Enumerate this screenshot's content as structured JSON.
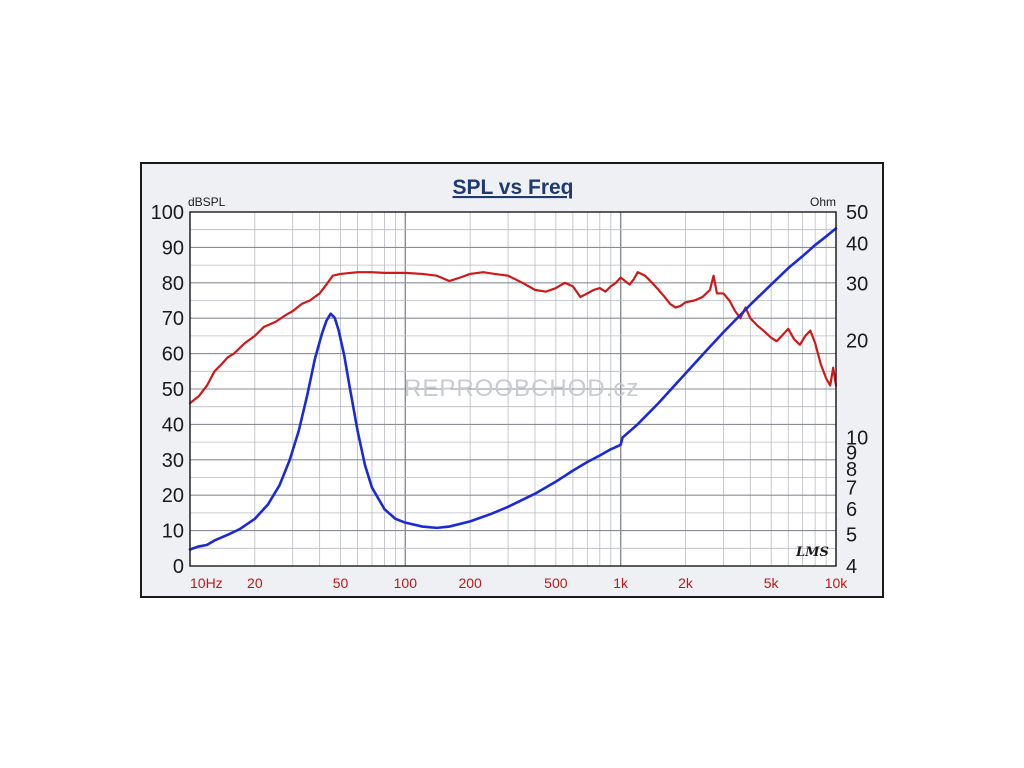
{
  "chart_data": {
    "type": "line",
    "title": "SPL vs Freq",
    "ylabel": "dBSPL",
    "y2label": "Ohm",
    "watermark": "REPROOBCHOD.cz",
    "logo": "LMS",
    "x_scale": "log",
    "xlim": [
      10,
      10000
    ],
    "ylim": [
      0,
      100
    ],
    "y2lim": [
      4,
      50
    ],
    "y2_scale": "log",
    "grid": true,
    "x_ticks": [
      {
        "value": 10,
        "label": "10Hz"
      },
      {
        "value": 20,
        "label": "20"
      },
      {
        "value": 50,
        "label": "50"
      },
      {
        "value": 100,
        "label": "100"
      },
      {
        "value": 200,
        "label": "200"
      },
      {
        "value": 500,
        "label": "500"
      },
      {
        "value": 1000,
        "label": "1k"
      },
      {
        "value": 2000,
        "label": "2k"
      },
      {
        "value": 5000,
        "label": "5k"
      },
      {
        "value": 10000,
        "label": "10k"
      }
    ],
    "y_ticks": [
      0,
      10,
      20,
      30,
      40,
      50,
      60,
      70,
      80,
      90,
      100
    ],
    "y2_ticks": [
      4,
      5,
      6,
      7,
      8,
      9,
      10,
      20,
      30,
      40,
      50
    ],
    "series": [
      {
        "axis": "left",
        "color": "#d01818",
        "points": [
          [
            10,
            46
          ],
          [
            11,
            48
          ],
          [
            12,
            51
          ],
          [
            13,
            55
          ],
          [
            14,
            57
          ],
          [
            15,
            59
          ],
          [
            16,
            60
          ],
          [
            18,
            63
          ],
          [
            20,
            65
          ],
          [
            22,
            67.5
          ],
          [
            25,
            69
          ],
          [
            28,
            71
          ],
          [
            30,
            72
          ],
          [
            33,
            74
          ],
          [
            36,
            75
          ],
          [
            40,
            77
          ],
          [
            43,
            79.5
          ],
          [
            46,
            82
          ],
          [
            50,
            82.5
          ],
          [
            60,
            83
          ],
          [
            70,
            83
          ],
          [
            80,
            82.8
          ],
          [
            100,
            82.8
          ],
          [
            120,
            82.5
          ],
          [
            140,
            82
          ],
          [
            160,
            80.5
          ],
          [
            180,
            81.5
          ],
          [
            200,
            82.5
          ],
          [
            230,
            83
          ],
          [
            260,
            82.5
          ],
          [
            300,
            82
          ],
          [
            350,
            80
          ],
          [
            400,
            78
          ],
          [
            450,
            77.5
          ],
          [
            500,
            78.5
          ],
          [
            550,
            80
          ],
          [
            600,
            79
          ],
          [
            650,
            76
          ],
          [
            700,
            77
          ],
          [
            750,
            78
          ],
          [
            800,
            78.5
          ],
          [
            850,
            77.5
          ],
          [
            900,
            79
          ],
          [
            950,
            80
          ],
          [
            1000,
            81.5
          ],
          [
            1100,
            79.5
          ],
          [
            1150,
            81
          ],
          [
            1200,
            83
          ],
          [
            1300,
            82
          ],
          [
            1400,
            80
          ],
          [
            1500,
            78
          ],
          [
            1600,
            76
          ],
          [
            1700,
            74
          ],
          [
            1800,
            73
          ],
          [
            1900,
            73.5
          ],
          [
            2000,
            74.5
          ],
          [
            2200,
            75
          ],
          [
            2400,
            76
          ],
          [
            2600,
            78
          ],
          [
            2700,
            82
          ],
          [
            2800,
            77
          ],
          [
            3000,
            77
          ],
          [
            3200,
            75
          ],
          [
            3400,
            72
          ],
          [
            3600,
            70
          ],
          [
            3800,
            73
          ],
          [
            4000,
            70
          ],
          [
            4300,
            68
          ],
          [
            4600,
            66.5
          ],
          [
            5000,
            64.5
          ],
          [
            5300,
            63.5
          ],
          [
            5600,
            65
          ],
          [
            6000,
            67
          ],
          [
            6400,
            64
          ],
          [
            6800,
            62.5
          ],
          [
            7200,
            65
          ],
          [
            7600,
            66.5
          ],
          [
            8000,
            63
          ],
          [
            8500,
            57
          ],
          [
            9000,
            53
          ],
          [
            9400,
            51
          ],
          [
            9700,
            56
          ],
          [
            10000,
            51
          ]
        ]
      },
      {
        "axis": "right",
        "color": "#1a2ad6",
        "points": [
          [
            10,
            4.5
          ],
          [
            11,
            4.6
          ],
          [
            12,
            4.65
          ],
          [
            13,
            4.8
          ],
          [
            15,
            5.0
          ],
          [
            17,
            5.2
          ],
          [
            20,
            5.6
          ],
          [
            23,
            6.2
          ],
          [
            26,
            7.1
          ],
          [
            29,
            8.5
          ],
          [
            32,
            10.5
          ],
          [
            35,
            13.5
          ],
          [
            38,
            17.5
          ],
          [
            41,
            21
          ],
          [
            43,
            23
          ],
          [
            45,
            24.2
          ],
          [
            47,
            23.5
          ],
          [
            49,
            21.5
          ],
          [
            52,
            18
          ],
          [
            55,
            14.5
          ],
          [
            60,
            10.5
          ],
          [
            65,
            8.2
          ],
          [
            70,
            7.0
          ],
          [
            80,
            6.0
          ],
          [
            90,
            5.6
          ],
          [
            100,
            5.45
          ],
          [
            120,
            5.3
          ],
          [
            140,
            5.25
          ],
          [
            160,
            5.3
          ],
          [
            200,
            5.5
          ],
          [
            250,
            5.8
          ],
          [
            300,
            6.1
          ],
          [
            400,
            6.7
          ],
          [
            500,
            7.3
          ],
          [
            600,
            7.9
          ],
          [
            700,
            8.4
          ],
          [
            800,
            8.8
          ],
          [
            900,
            9.2
          ],
          [
            1000,
            9.5
          ],
          [
            1020,
            10.0
          ],
          [
            1200,
            11.0
          ],
          [
            1500,
            12.8
          ],
          [
            2000,
            15.8
          ],
          [
            2500,
            18.6
          ],
          [
            3000,
            21.2
          ],
          [
            4000,
            25.8
          ],
          [
            5000,
            29.8
          ],
          [
            6000,
            33.5
          ],
          [
            7000,
            36.5
          ],
          [
            8000,
            39.5
          ],
          [
            9000,
            42.0
          ],
          [
            10000,
            44.5
          ]
        ]
      }
    ]
  }
}
